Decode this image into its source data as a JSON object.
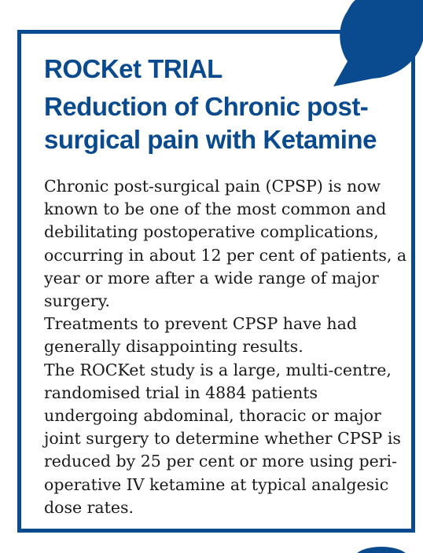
{
  "heading": {
    "title": "ROCKet TRIAL",
    "subtitle": "Reduction of Chronic post-surgical pain with Ketamine"
  },
  "body": {
    "paragraphs": [
      "Chronic post-surgical pain (CPSP) is now known to be one of the most common and debilitating postoperative complications, occurring in about 12 per cent of patients, a year or more after a wide range of major surgery.",
      "Treatments to prevent CPSP have had generally disappointing results.",
      "The ROCKet study is a large, multi-centre, randomised trial in 4884 patients undergoing abdominal, thoracic or major joint surgery to determine whether CPSP is reduced by 25 per cent or more using peri-operative IV ketamine at typical analgesic dose rates."
    ]
  },
  "colors": {
    "accent": "#0a4b8f",
    "text": "#1a1a1a",
    "background": "#ffffff"
  }
}
